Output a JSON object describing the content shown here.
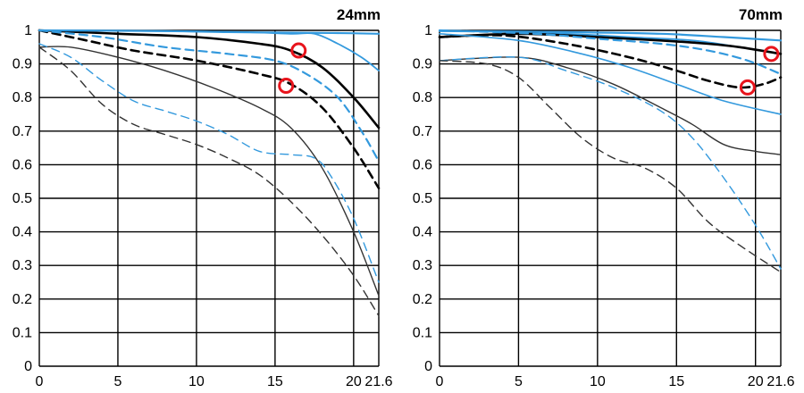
{
  "chart_data": [
    {
      "type": "line",
      "title": "24mm",
      "xlabel": "",
      "ylabel": "",
      "xlim": [
        0,
        21.6
      ],
      "ylim": [
        0,
        1
      ],
      "x_ticks": [
        "0",
        "5",
        "10",
        "15",
        "20",
        "21.6"
      ],
      "y_ticks": [
        "0",
        "0.1",
        "0.2",
        "0.3",
        "0.4",
        "0.5",
        "0.6",
        "0.7",
        "0.8",
        "0.9",
        "1"
      ],
      "grid": true,
      "series": [
        {
          "color": "#000000",
          "width": 2.6,
          "dash": "solid",
          "points": [
            [
              0,
              1.0
            ],
            [
              5,
              0.99
            ],
            [
              10,
              0.98
            ],
            [
              14,
              0.96
            ],
            [
              16,
              0.94
            ],
            [
              18,
              0.89
            ],
            [
              20,
              0.8
            ],
            [
              21.6,
              0.71
            ]
          ]
        },
        {
          "color": "#000000",
          "width": 2.6,
          "dash": "dashed",
          "points": [
            [
              0,
              1.0
            ],
            [
              3,
              0.97
            ],
            [
              6,
              0.94
            ],
            [
              10,
              0.91
            ],
            [
              14,
              0.87
            ],
            [
              16,
              0.84
            ],
            [
              18,
              0.77
            ],
            [
              20,
              0.65
            ],
            [
              21.6,
              0.53
            ]
          ]
        },
        {
          "color": "#333333",
          "width": 1.4,
          "dash": "solid",
          "points": [
            [
              0,
              0.95
            ],
            [
              2,
              0.95
            ],
            [
              5,
              0.92
            ],
            [
              8,
              0.88
            ],
            [
              11,
              0.83
            ],
            [
              14,
              0.77
            ],
            [
              16,
              0.71
            ],
            [
              18,
              0.59
            ],
            [
              20,
              0.4
            ],
            [
              21.6,
              0.21
            ]
          ]
        },
        {
          "color": "#333333",
          "width": 1.4,
          "dash": "dashed",
          "points": [
            [
              0,
              0.95
            ],
            [
              2,
              0.88
            ],
            [
              4,
              0.78
            ],
            [
              6,
              0.72
            ],
            [
              8,
              0.69
            ],
            [
              10,
              0.66
            ],
            [
              12,
              0.62
            ],
            [
              14,
              0.57
            ],
            [
              16,
              0.49
            ],
            [
              18,
              0.39
            ],
            [
              20,
              0.27
            ],
            [
              21.6,
              0.15
            ]
          ]
        },
        {
          "color": "#3399dd",
          "width": 2.2,
          "dash": "solid",
          "points": [
            [
              0,
              1.0
            ],
            [
              8,
              0.998
            ],
            [
              12,
              0.995
            ],
            [
              16,
              0.993
            ],
            [
              19,
              0.992
            ],
            [
              21.6,
              0.99
            ]
          ]
        },
        {
          "color": "#3399dd",
          "width": 1.8,
          "dash": "solid",
          "points": [
            [
              0,
              1.0
            ],
            [
              8,
              0.998
            ],
            [
              13,
              0.995
            ],
            [
              16,
              0.99
            ],
            [
              17.5,
              0.99
            ],
            [
              19,
              0.96
            ],
            [
              20.5,
              0.92
            ],
            [
              21.6,
              0.88
            ]
          ]
        },
        {
          "color": "#3399dd",
          "width": 2.2,
          "dash": "dashed",
          "points": [
            [
              0,
              1.0
            ],
            [
              4,
              0.98
            ],
            [
              8,
              0.95
            ],
            [
              12,
              0.93
            ],
            [
              15,
              0.91
            ],
            [
              17,
              0.87
            ],
            [
              19,
              0.8
            ],
            [
              20.5,
              0.7
            ],
            [
              21.6,
              0.61
            ]
          ]
        },
        {
          "color": "#3399dd",
          "width": 1.4,
          "dash": "dashed",
          "points": [
            [
              0,
              0.96
            ],
            [
              2,
              0.92
            ],
            [
              4,
              0.85
            ],
            [
              6,
              0.79
            ],
            [
              8,
              0.76
            ],
            [
              10,
              0.73
            ],
            [
              12,
              0.69
            ],
            [
              14,
              0.64
            ],
            [
              16,
              0.63
            ],
            [
              17.5,
              0.62
            ],
            [
              18.5,
              0.57
            ],
            [
              20,
              0.44
            ],
            [
              21.6,
              0.25
            ]
          ]
        }
      ],
      "markers": [
        [
          16.5,
          0.94
        ],
        [
          15.7,
          0.835
        ]
      ]
    },
    {
      "type": "line",
      "title": "70mm",
      "xlabel": "",
      "ylabel": "",
      "xlim": [
        0,
        21.6
      ],
      "ylim": [
        0,
        1
      ],
      "x_ticks": [
        "0",
        "5",
        "10",
        "15",
        "20",
        "21.6"
      ],
      "y_ticks": [
        "0",
        "0.1",
        "0.2",
        "0.3",
        "0.4",
        "0.5",
        "0.6",
        "0.7",
        "0.8",
        "0.9",
        "1"
      ],
      "grid": true,
      "series": [
        {
          "color": "#3399dd",
          "width": 2.2,
          "dash": "solid",
          "points": [
            [
              0,
              0.998
            ],
            [
              8,
              0.995
            ],
            [
              14,
              0.99
            ],
            [
              18,
              0.98
            ],
            [
              21.6,
              0.97
            ]
          ]
        },
        {
          "color": "#3399dd",
          "width": 1.8,
          "dash": "solid",
          "points": [
            [
              0,
              1.0
            ],
            [
              8,
              0.99
            ],
            [
              12,
              0.98
            ],
            [
              16,
              0.97
            ],
            [
              19,
              0.95
            ],
            [
              21.6,
              0.93
            ]
          ]
        },
        {
          "color": "#000000",
          "width": 2.6,
          "dash": "solid",
          "points": [
            [
              0,
              0.98
            ],
            [
              5,
              0.99
            ],
            [
              10,
              0.98
            ],
            [
              14,
              0.97
            ],
            [
              17,
              0.96
            ],
            [
              19,
              0.95
            ],
            [
              21.6,
              0.93
            ]
          ]
        },
        {
          "color": "#3399dd",
          "width": 2.2,
          "dash": "dashed",
          "points": [
            [
              0,
              1.0
            ],
            [
              6,
              0.99
            ],
            [
              10,
              0.975
            ],
            [
              14,
              0.96
            ],
            [
              17,
              0.94
            ],
            [
              19.5,
              0.91
            ],
            [
              21.6,
              0.87
            ]
          ]
        },
        {
          "color": "#000000",
          "width": 2.6,
          "dash": "dashed",
          "points": [
            [
              0,
              0.98
            ],
            [
              4,
              0.985
            ],
            [
              8,
              0.96
            ],
            [
              12,
              0.92
            ],
            [
              15,
              0.88
            ],
            [
              17,
              0.85
            ],
            [
              19,
              0.83
            ],
            [
              20.5,
              0.84
            ],
            [
              21.6,
              0.86
            ]
          ]
        },
        {
          "color": "#3399dd",
          "width": 1.6,
          "dash": "solid",
          "points": [
            [
              0,
              0.99
            ],
            [
              5,
              0.97
            ],
            [
              9,
              0.93
            ],
            [
              12,
              0.89
            ],
            [
              15,
              0.84
            ],
            [
              18,
              0.79
            ],
            [
              21.6,
              0.75
            ]
          ]
        },
        {
          "color": "#333333",
          "width": 1.4,
          "dash": "solid",
          "points": [
            [
              0,
              0.91
            ],
            [
              5,
              0.92
            ],
            [
              8,
              0.89
            ],
            [
              11,
              0.84
            ],
            [
              14,
              0.77
            ],
            [
              16,
              0.72
            ],
            [
              18,
              0.66
            ],
            [
              20,
              0.64
            ],
            [
              21.6,
              0.63
            ]
          ]
        },
        {
          "color": "#3399dd",
          "width": 1.4,
          "dash": "dashed",
          "points": [
            [
              0,
              0.91
            ],
            [
              5,
              0.92
            ],
            [
              8,
              0.88
            ],
            [
              11,
              0.83
            ],
            [
              14,
              0.76
            ],
            [
              16,
              0.68
            ],
            [
              18,
              0.56
            ],
            [
              20,
              0.42
            ],
            [
              21.6,
              0.29
            ]
          ]
        },
        {
          "color": "#333333",
          "width": 1.4,
          "dash": "dashed",
          "points": [
            [
              0,
              0.91
            ],
            [
              3,
              0.9
            ],
            [
              5,
              0.86
            ],
            [
              7,
              0.77
            ],
            [
              9,
              0.68
            ],
            [
              11,
              0.62
            ],
            [
              13,
              0.59
            ],
            [
              15,
              0.53
            ],
            [
              17,
              0.43
            ],
            [
              19,
              0.36
            ],
            [
              21.6,
              0.28
            ]
          ]
        }
      ],
      "markers": [
        [
          21,
          0.93
        ],
        [
          19.5,
          0.83
        ]
      ]
    }
  ]
}
